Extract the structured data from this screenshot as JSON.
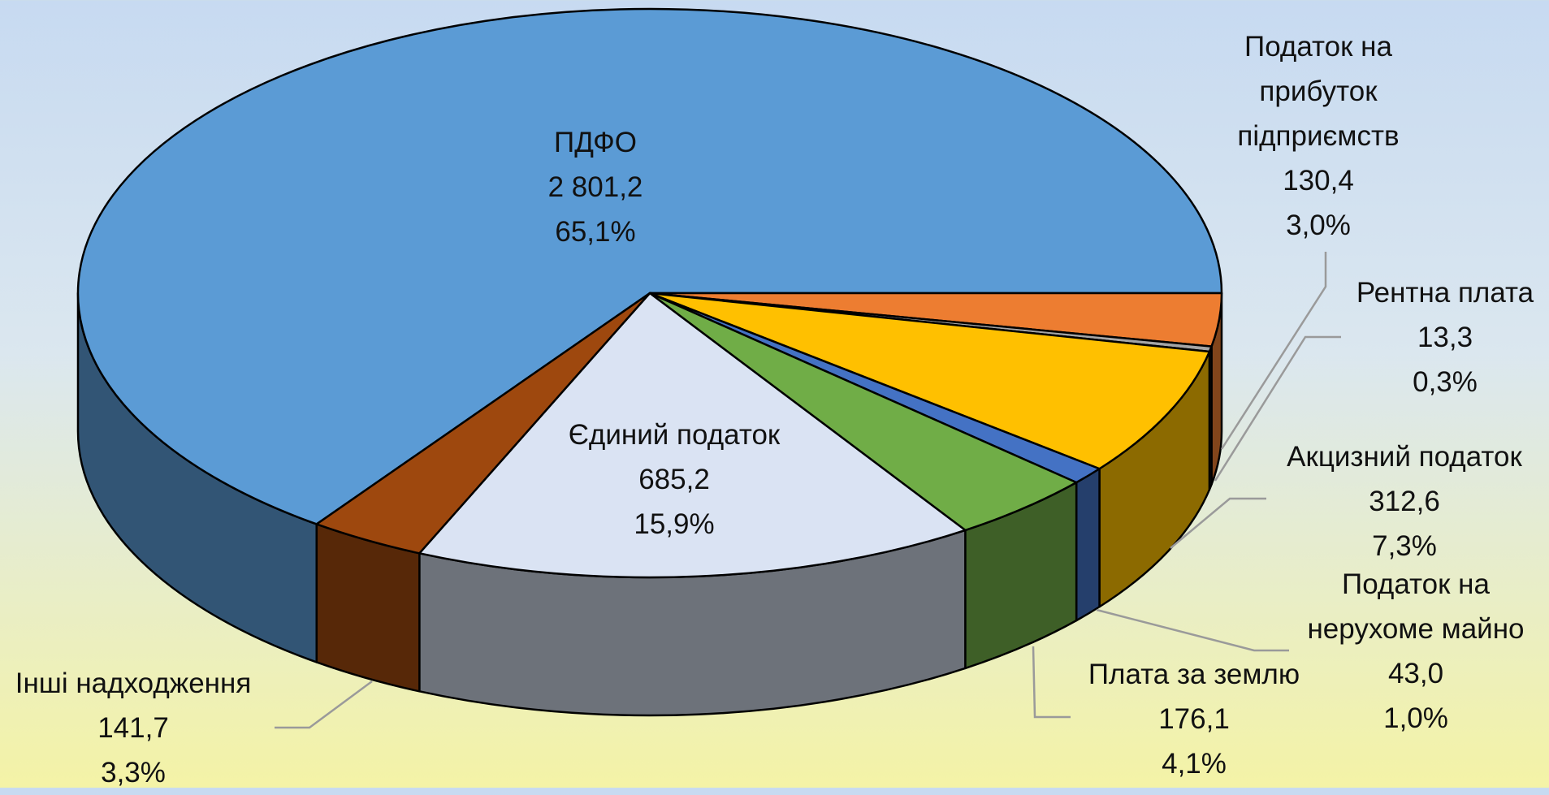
{
  "chart_data": {
    "type": "pie3d",
    "categories": [
      "ПДФО",
      "Податок на прибуток підприємств",
      "Рентна плата",
      "Акцизний податок",
      "Податок на нерухоме майно",
      "Плата за землю",
      "Єдиний податок",
      "Інші надходження"
    ],
    "values": [
      2801.2,
      130.4,
      13.3,
      312.6,
      43.0,
      176.1,
      685.2,
      141.7
    ],
    "value_labels": [
      "2 801,2",
      "130,4",
      "13,3",
      "312,6",
      "43,0",
      "176,1",
      "685,2",
      "141,7"
    ],
    "percentages": [
      65.1,
      3.0,
      0.3,
      7.3,
      1.0,
      4.1,
      15.9,
      3.3
    ],
    "percentage_labels": [
      "65,1%",
      "3,0%",
      "0,3%",
      "7,3%",
      "1,0%",
      "4,1%",
      "15,9%",
      "3,3%"
    ],
    "colors": [
      "#5b9bd5",
      "#ed7d31",
      "#a5a5a5",
      "#ffc000",
      "#4472c4",
      "#70ad47",
      "#dae3f3",
      "#9e480e"
    ]
  }
}
